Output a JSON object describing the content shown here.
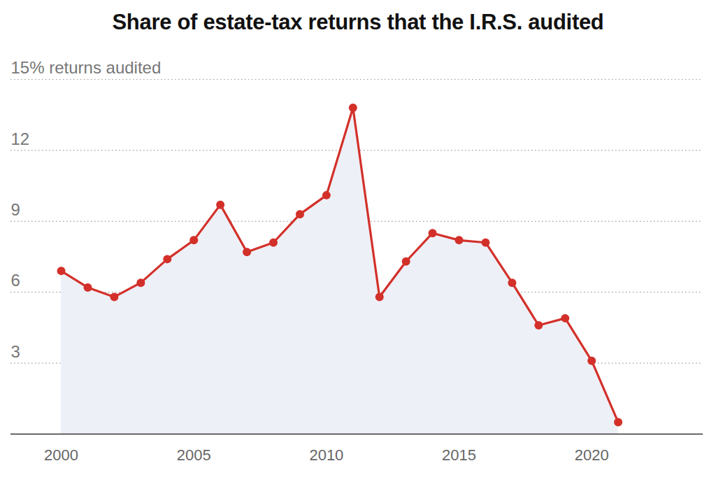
{
  "chart_data": {
    "type": "line",
    "title": "Share of estate-tax returns that the I.R.S. audited",
    "x": [
      2000,
      2001,
      2002,
      2003,
      2004,
      2005,
      2006,
      2007,
      2008,
      2009,
      2010,
      2011,
      2012,
      2013,
      2014,
      2015,
      2016,
      2017,
      2018,
      2019,
      2020,
      2021
    ],
    "values": [
      6.9,
      6.2,
      5.8,
      6.4,
      7.4,
      8.2,
      9.7,
      7.7,
      8.1,
      9.3,
      10.1,
      13.8,
      5.8,
      7.3,
      8.5,
      8.2,
      8.1,
      6.4,
      4.6,
      4.9,
      3.1,
      0.5
    ],
    "color": "#d3302a",
    "marker": "circle",
    "xlim": [
      1998.1,
      2024.2
    ],
    "xticks": [
      2000,
      2005,
      2010,
      2015,
      2020
    ],
    "ylim": [
      0,
      15
    ],
    "yticks": [
      3,
      6,
      9,
      12,
      {
        "value": 15,
        "label": "15% returns audited"
      }
    ],
    "grid": true
  }
}
